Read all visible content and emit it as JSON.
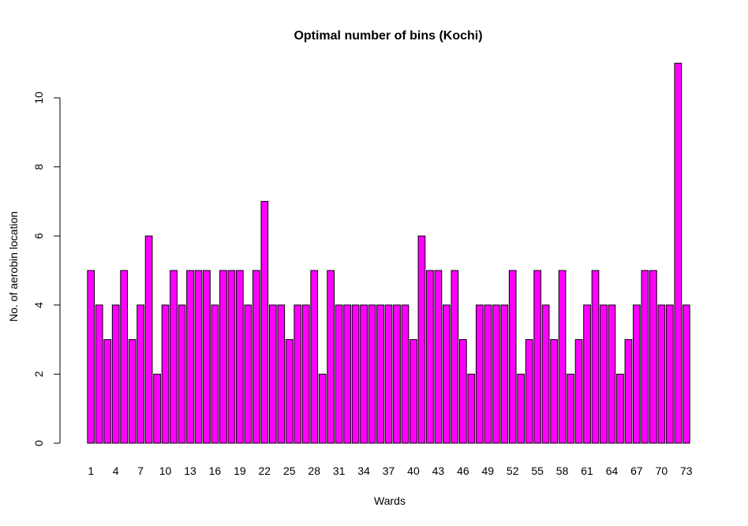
{
  "chart_data": {
    "type": "bar",
    "title": "Optimal number of bins (Kochi)",
    "xlabel": "Wards",
    "ylabel": "No. of aerobin location",
    "bar_color": "#ff00ff",
    "bar_border_color": "#000000",
    "ylim": [
      0,
      11
    ],
    "yticks": [
      0,
      2,
      4,
      6,
      8,
      10
    ],
    "xtick_labels": [
      "1",
      "4",
      "7",
      "10",
      "13",
      "16",
      "19",
      "22",
      "25",
      "28",
      "31",
      "34",
      "37",
      "40",
      "43",
      "46",
      "49",
      "52",
      "55",
      "58",
      "61",
      "64",
      "67",
      "70",
      "73"
    ],
    "xtick_positions": [
      1,
      4,
      7,
      10,
      13,
      16,
      19,
      22,
      25,
      28,
      31,
      34,
      37,
      40,
      43,
      46,
      49,
      52,
      55,
      58,
      61,
      64,
      67,
      70,
      73
    ],
    "categories": [
      "1",
      "2",
      "3",
      "4",
      "5",
      "6",
      "7",
      "8",
      "9",
      "10",
      "11",
      "12",
      "13",
      "14",
      "15",
      "16",
      "17",
      "18",
      "19",
      "20",
      "21",
      "22",
      "23",
      "24",
      "25",
      "26",
      "27",
      "28",
      "29",
      "30",
      "31",
      "32",
      "33",
      "34",
      "35",
      "36",
      "37",
      "38",
      "39",
      "40",
      "41",
      "42",
      "43",
      "44",
      "45",
      "46",
      "47",
      "48",
      "49",
      "50",
      "51",
      "52",
      "53",
      "54",
      "55",
      "56",
      "57",
      "58",
      "59",
      "60",
      "61",
      "62",
      "63",
      "64",
      "65",
      "66",
      "67",
      "68",
      "69",
      "70",
      "71",
      "72",
      "73"
    ],
    "values": [
      5,
      4,
      3,
      4,
      5,
      3,
      4,
      6,
      2,
      4,
      5,
      4,
      5,
      5,
      5,
      4,
      5,
      5,
      5,
      4,
      5,
      7,
      4,
      4,
      3,
      4,
      4,
      5,
      2,
      5,
      4,
      4,
      4,
      4,
      4,
      4,
      4,
      4,
      4,
      3,
      6,
      5,
      5,
      4,
      5,
      3,
      2,
      4,
      4,
      4,
      4,
      5,
      2,
      3,
      5,
      4,
      3,
      5,
      2,
      3,
      4,
      5,
      4,
      4,
      2,
      3,
      4,
      5,
      5,
      4,
      4,
      11,
      4
    ]
  }
}
